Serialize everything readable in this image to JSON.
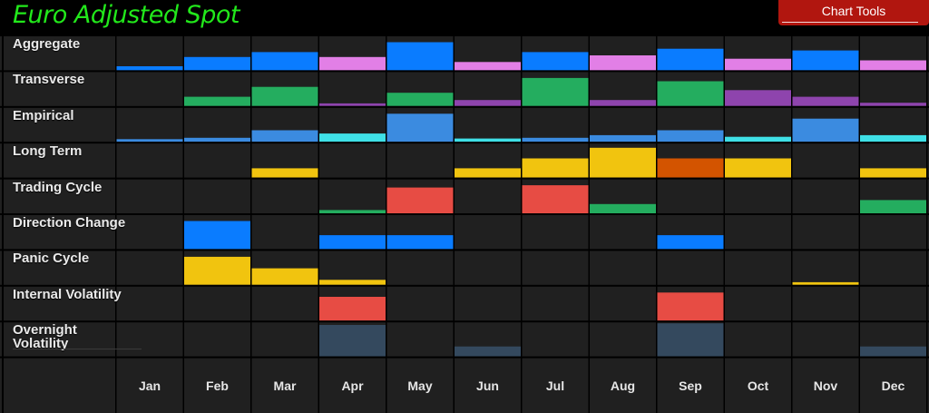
{
  "title": "Euro Adjusted Spot",
  "toolbar": {
    "chart_tools_label": "Chart Tools"
  },
  "colors": {
    "title": "#22e81b",
    "cell_bg": "#202020",
    "grid_line": "#000000",
    "toolbar_bg": "#b1160f",
    "blue": "#0a7cff",
    "pink": "#e27fe6",
    "green": "#24ad5f",
    "purple": "#8e44ad",
    "steel_blue": "#3b8be0",
    "cyan": "#3fe0e6",
    "yellow": "#f1c40f",
    "orange": "#d35400",
    "red": "#e74c44",
    "slate": "#34495e"
  },
  "chart_data": {
    "type": "heatmap",
    "title": "Euro Adjusted Spot",
    "categories": [
      "Jan",
      "Feb",
      "Mar",
      "Apr",
      "May",
      "Jun",
      "Jul",
      "Aug",
      "Sep",
      "Oct",
      "Nov",
      "Dec"
    ],
    "value_scale": "fraction of cell height filled (0-1)",
    "series": [
      {
        "name": "Aggregate",
        "values": [
          0.12,
          0.4,
          0.55,
          0.4,
          0.85,
          0.25,
          0.55,
          0.45,
          0.65,
          0.35,
          0.6,
          0.3
        ],
        "colors": [
          "blue",
          "blue",
          "blue",
          "pink",
          "blue",
          "pink",
          "blue",
          "pink",
          "blue",
          "pink",
          "blue",
          "pink"
        ]
      },
      {
        "name": "Transverse",
        "values": [
          0,
          0.28,
          0.58,
          0.08,
          0.4,
          0.18,
          0.85,
          0.18,
          0.75,
          0.48,
          0.28,
          0.1
        ],
        "colors": [
          "green",
          "green",
          "green",
          "purple",
          "green",
          "purple",
          "green",
          "purple",
          "green",
          "purple",
          "purple",
          "purple"
        ]
      },
      {
        "name": "Empirical",
        "values": [
          0.08,
          0.12,
          0.35,
          0.25,
          0.85,
          0.1,
          0.12,
          0.2,
          0.35,
          0.15,
          0.7,
          0.2
        ],
        "colors": [
          "steel_blue",
          "steel_blue",
          "steel_blue",
          "cyan",
          "steel_blue",
          "cyan",
          "steel_blue",
          "steel_blue",
          "steel_blue",
          "cyan",
          "steel_blue",
          "cyan"
        ]
      },
      {
        "name": "Long Term",
        "values": [
          0,
          0,
          0.28,
          0,
          0,
          0.28,
          0.58,
          0.9,
          0.58,
          0.58,
          0,
          0.28
        ],
        "colors": [
          "yellow",
          "yellow",
          "yellow",
          "yellow",
          "yellow",
          "yellow",
          "yellow",
          "yellow",
          "orange",
          "yellow",
          "yellow",
          "yellow"
        ]
      },
      {
        "name": "Trading Cycle",
        "values": [
          0,
          0,
          0,
          0.1,
          0.78,
          0,
          0.85,
          0.28,
          0,
          0,
          0,
          0.4
        ],
        "colors": [
          "green",
          "green",
          "green",
          "green",
          "red",
          "green",
          "red",
          "green",
          "green",
          "green",
          "green",
          "green"
        ]
      },
      {
        "name": "Direction Change",
        "values": [
          0,
          0.85,
          0,
          0.42,
          0.42,
          0,
          0,
          0,
          0.42,
          0,
          0,
          0
        ],
        "colors": [
          "blue",
          "blue",
          "blue",
          "blue",
          "blue",
          "blue",
          "blue",
          "blue",
          "blue",
          "blue",
          "blue",
          "blue"
        ]
      },
      {
        "name": "Panic Cycle",
        "values": [
          0,
          0.85,
          0.5,
          0.15,
          0,
          0,
          0,
          0,
          0,
          0,
          0.08,
          0
        ],
        "colors": [
          "yellow",
          "yellow",
          "yellow",
          "yellow",
          "yellow",
          "yellow",
          "yellow",
          "yellow",
          "yellow",
          "yellow",
          "yellow",
          "yellow"
        ]
      },
      {
        "name": "Internal Volatility",
        "values": [
          0,
          0,
          0,
          0.72,
          0,
          0,
          0,
          0,
          0.85,
          0,
          0,
          0
        ],
        "colors": [
          "red",
          "red",
          "red",
          "red",
          "red",
          "red",
          "red",
          "red",
          "red",
          "red",
          "red",
          "red"
        ]
      },
      {
        "name": "Overnight\nVolatility",
        "values": [
          0,
          0,
          0,
          0.95,
          0,
          0.3,
          0,
          0,
          1.0,
          0,
          0,
          0.3
        ],
        "colors": [
          "slate",
          "slate",
          "slate",
          "slate",
          "slate",
          "slate",
          "slate",
          "slate",
          "slate",
          "slate",
          "slate",
          "slate"
        ]
      }
    ]
  }
}
